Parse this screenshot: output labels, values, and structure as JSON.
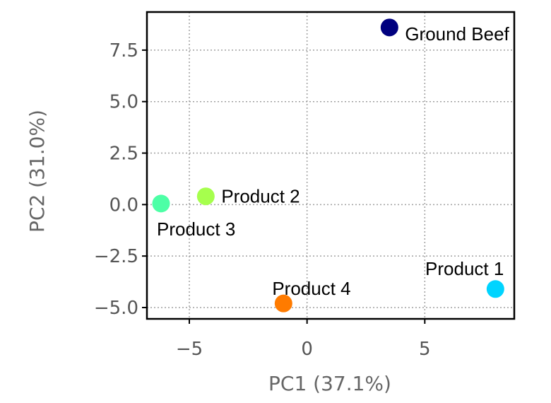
{
  "chart_data": {
    "type": "scatter",
    "title": "",
    "xlabel": "PC1 (37.1%)",
    "ylabel": "PC2 (31.0%)",
    "xlim": [
      -6.8,
      8.8
    ],
    "ylim": [
      -5.55,
      9.35
    ],
    "xticks": [
      -5,
      0,
      5
    ],
    "xtick_labels": [
      "−5",
      "0",
      "5"
    ],
    "yticks": [
      -5.0,
      -2.5,
      0.0,
      2.5,
      5.0,
      7.5
    ],
    "ytick_labels": [
      "−5.0",
      "−2.5",
      "0.0",
      "2.5",
      "5.0",
      "7.5"
    ],
    "grid": true,
    "points": [
      {
        "label": "Ground Beef",
        "x": 3.5,
        "y": 8.6,
        "color": "#00007f",
        "label_pos": "below-right"
      },
      {
        "label": "Product 2",
        "x": -4.3,
        "y": 0.4,
        "color": "#a6ff4d",
        "label_pos": "right"
      },
      {
        "label": "Product 3",
        "x": -6.2,
        "y": 0.05,
        "color": "#4dffa6",
        "label_pos": "below"
      },
      {
        "label": "Product 1",
        "x": 8.0,
        "y": -4.1,
        "color": "#00d4ff",
        "label_pos": "above-left"
      },
      {
        "label": "Product 4",
        "x": -1.0,
        "y": -4.8,
        "color": "#ff7b00",
        "label_pos": "above-right"
      }
    ]
  }
}
